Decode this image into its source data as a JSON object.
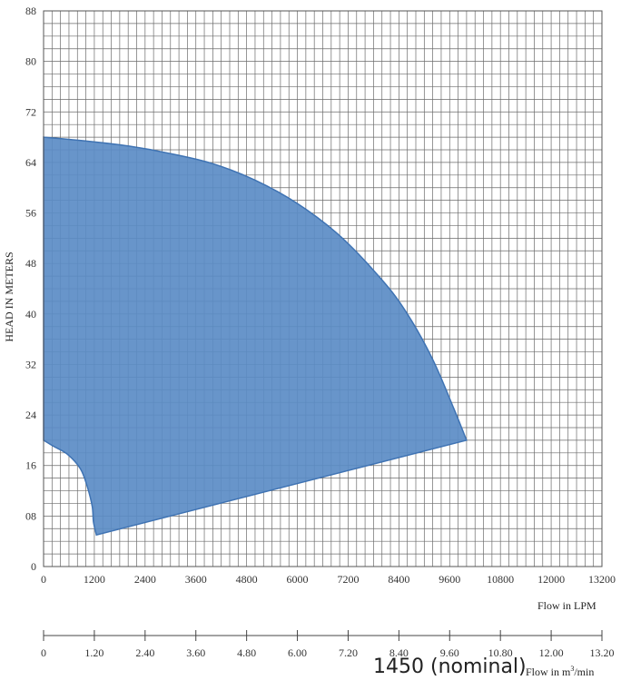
{
  "chart_data": {
    "type": "area",
    "ylabel": "HEAD IN METERS",
    "xlabel": "Flow in LPM",
    "secondary_xlabel": "Flow in m³/min",
    "secondary_xlabel_main": "Flow in m",
    "secondary_xlabel_sup": "3",
    "secondary_xlabel_tail": "/min",
    "annotation": "1450 (nominal)",
    "xlim": [
      0,
      13200
    ],
    "ylim": [
      0,
      88
    ],
    "grid": true,
    "fill_color": "#5b8cc6",
    "edge_color": "#3f73b3",
    "x_ticks": [
      "0",
      "1200",
      "2400",
      "3600",
      "4800",
      "6000",
      "7200",
      "8400",
      "9600",
      "10800",
      "12000",
      "13200"
    ],
    "x2_ticks": [
      "0",
      "1.20",
      "2.40",
      "3.60",
      "4.80",
      "6.00",
      "7.20",
      "8.40",
      "9.60",
      "10.80",
      "12.00",
      "13.20"
    ],
    "y_ticks": [
      "0",
      "08",
      "16",
      "24",
      "32",
      "40",
      "48",
      "56",
      "64",
      "72",
      "80",
      "88"
    ],
    "operating_envelope": {
      "upper_curve": [
        [
          0,
          68
        ],
        [
          1000,
          67.4
        ],
        [
          2000,
          66.6
        ],
        [
          3000,
          65.4
        ],
        [
          4000,
          63.8
        ],
        [
          5000,
          61.2
        ],
        [
          6000,
          57.5
        ],
        [
          7000,
          52.4
        ],
        [
          8000,
          45.4
        ],
        [
          8600,
          40
        ],
        [
          9200,
          32.8
        ],
        [
          9700,
          25
        ],
        [
          10000,
          20
        ]
      ],
      "lower_curve": [
        [
          10000,
          20
        ],
        [
          1250,
          5
        ]
      ],
      "left_curve": [
        [
          1250,
          5
        ],
        [
          1180,
          7
        ],
        [
          1150,
          9.5
        ],
        [
          1040,
          12.5
        ],
        [
          870,
          15.5
        ],
        [
          560,
          17.8
        ],
        [
          250,
          19
        ],
        [
          0,
          20
        ]
      ]
    }
  }
}
